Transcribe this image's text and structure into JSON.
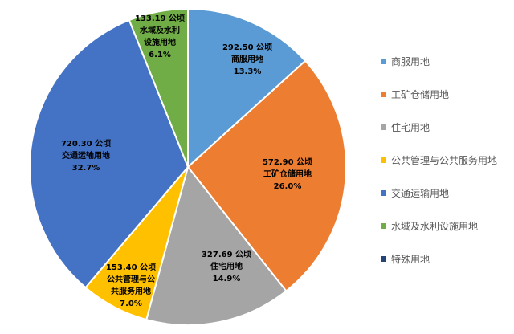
{
  "chart_data": {
    "type": "pie",
    "title": "",
    "categories": [
      "商服用地",
      "工矿仓储用地",
      "住宅用地",
      "公共管理与公共服务用地",
      "交通运输用地",
      "水域及水利设施用地",
      "特殊用地"
    ],
    "values": [
      292.5,
      572.9,
      327.69,
      153.4,
      720.3,
      133.19,
      0
    ],
    "unit": "公顷",
    "percents": [
      "13.3%",
      "26.0%",
      "14.9%",
      "7.0%",
      "32.7%",
      "6.1%",
      ""
    ],
    "colors": [
      "#5B9BD5",
      "#ED7D31",
      "#A5A5A5",
      "#FFC000",
      "#4472C4",
      "#70AD47",
      "#264478"
    ],
    "data_labels": [
      [
        "292.50 公顷",
        "商服用地",
        "13.3%"
      ],
      [
        "572.90 公顷",
        "工矿仓储用地",
        "26.0%"
      ],
      [
        "327.69 公顷",
        "住宅用地",
        "14.9%"
      ],
      [
        "153.40 公顷",
        "公共管理与公",
        "共服务用地",
        "7.0%"
      ],
      [
        "720.30 公顷",
        "交通运输用地",
        "32.7%"
      ],
      [
        "133.19 公顷",
        "水域及水利",
        "设施用地",
        "6.1%"
      ],
      []
    ],
    "legend": {
      "position": "right",
      "entries": [
        "商服用地",
        "工矿仓储用地",
        "住宅用地",
        "公共管理与公共服务用地",
        "交通运输用地",
        "水域及水利设施用地",
        "特殊用地"
      ]
    }
  }
}
